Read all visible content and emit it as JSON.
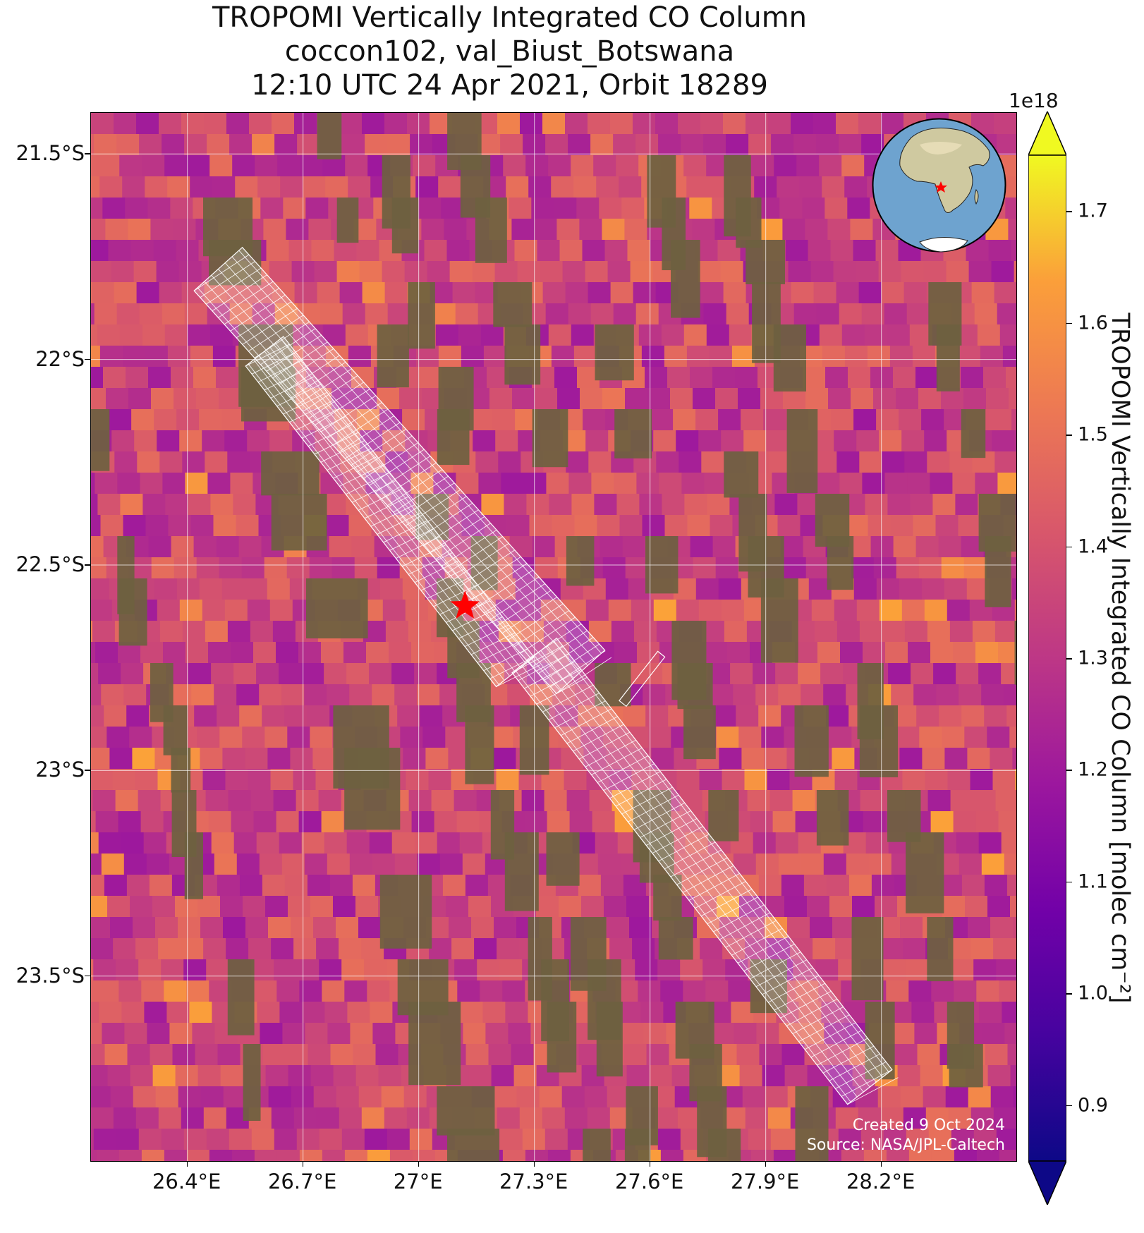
{
  "title_lines": [
    "TROPOMI Vertically Integrated CO Column",
    "coccon102, val_Biust_Botswana",
    "12:10 UTC 24 Apr 2021, Orbit 18289"
  ],
  "map": {
    "lon_range": [
      26.15,
      28.55
    ],
    "lat_range": [
      -23.95,
      -21.4
    ],
    "lat_ticks": [
      {
        "value": -21.5,
        "label": "21.5°S"
      },
      {
        "value": -22.0,
        "label": "22°S"
      },
      {
        "value": -22.5,
        "label": "22.5°S"
      },
      {
        "value": -23.0,
        "label": "23°S"
      },
      {
        "value": -23.5,
        "label": "23.5°S"
      }
    ],
    "lon_ticks": [
      {
        "value": 26.4,
        "label": "26.4°E"
      },
      {
        "value": 26.7,
        "label": "26.7°E"
      },
      {
        "value": 27.0,
        "label": "27°E"
      },
      {
        "value": 27.3,
        "label": "27.3°E"
      },
      {
        "value": 27.6,
        "label": "27.6°E"
      },
      {
        "value": 27.9,
        "label": "27.9°E"
      },
      {
        "value": 28.2,
        "label": "28.2°E"
      }
    ],
    "site": {
      "lon": 27.12,
      "lat": -22.6,
      "marker": "red-star"
    },
    "inset_globe_marker": "red-star",
    "credit_lines": [
      "Created 9 Oct 2024",
      "Source: NASA/JPL-Caltech"
    ]
  },
  "colorbar": {
    "cmap": "plasma",
    "min": 0.85,
    "max": 1.75,
    "exponent_label": "1e18",
    "ticks": [
      {
        "value": 0.9,
        "label": "0.9"
      },
      {
        "value": 1.0,
        "label": "1.0"
      },
      {
        "value": 1.1,
        "label": "1.1"
      },
      {
        "value": 1.2,
        "label": "1.2"
      },
      {
        "value": 1.3,
        "label": "1.3"
      },
      {
        "value": 1.4,
        "label": "1.4"
      },
      {
        "value": 1.5,
        "label": "1.5"
      },
      {
        "value": 1.6,
        "label": "1.6"
      },
      {
        "value": 1.7,
        "label": "1.7"
      }
    ],
    "label": "TROPOMI Vertically Integrated CO Column [molec cm⁻²]",
    "extend": "both"
  },
  "colors": {
    "land": "#6e6140",
    "grid": "#ffffff",
    "footprint": "#ffffff",
    "site": "#ff0000"
  }
}
